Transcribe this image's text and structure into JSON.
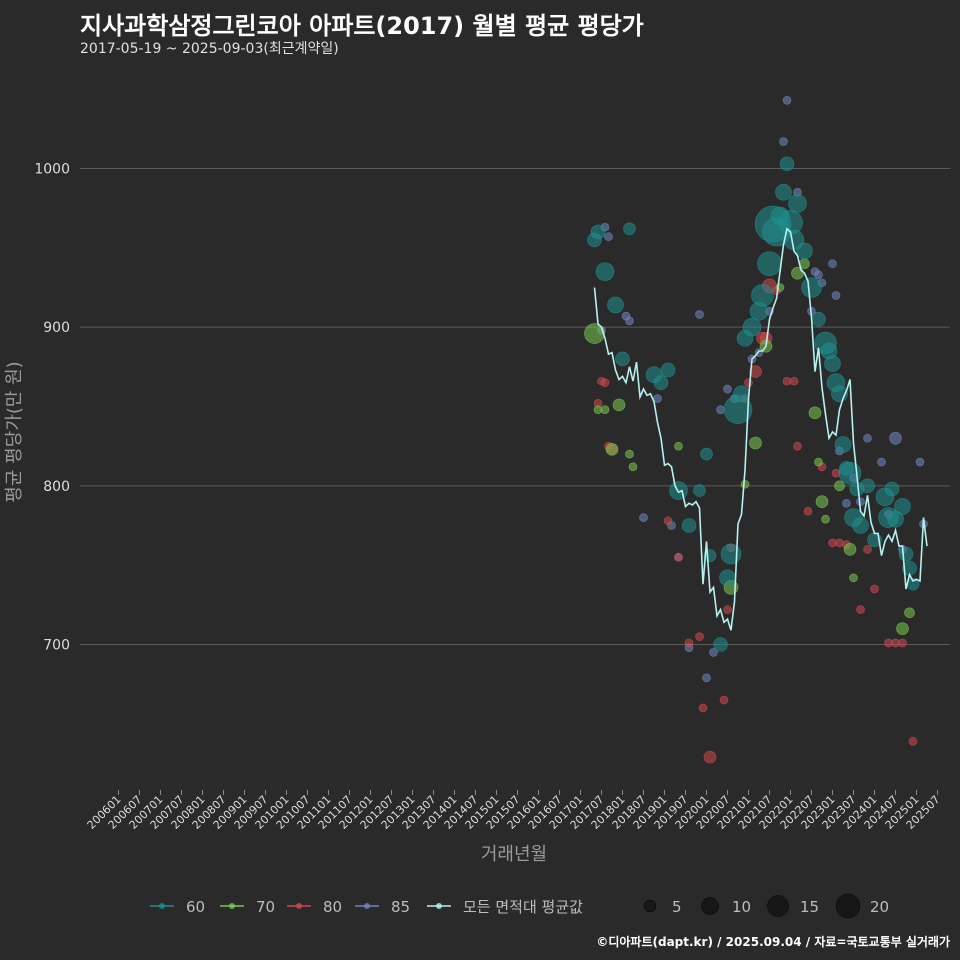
{
  "title": "지사과학삼정그린코아 아파트(2017) 월별 평균 평당가",
  "subtitle": "2017-05-19 ~ 2025-09-03(최근계약일)",
  "footer": "©디아파트(dapt.kr) / 2025.09.04 / 자료=국토교통부 실거래가",
  "colors": {
    "background": "#2a2a2a",
    "grid": "#5c5c5c",
    "area60": "#1f8f8f",
    "area70": "#7ac74f",
    "area80": "#d0484f",
    "area85": "#6f86c0",
    "average_line": "#b8f0f0"
  },
  "chart_data": {
    "type": "scatter",
    "xlabel": "거래년월",
    "ylabel": "평균 평당가(만 원)",
    "ylim": [
      605,
      1050
    ],
    "yticks": [
      700,
      800,
      900,
      1000
    ],
    "x_months": 237,
    "xticks": [
      "200601",
      "200607",
      "200701",
      "200707",
      "200801",
      "200807",
      "200901",
      "200907",
      "201001",
      "201007",
      "201101",
      "201107",
      "201201",
      "201207",
      "201301",
      "201307",
      "201401",
      "201407",
      "201501",
      "201507",
      "201601",
      "201607",
      "201701",
      "201707",
      "201801",
      "201807",
      "201901",
      "201907",
      "202001",
      "202007",
      "202101",
      "202107",
      "202201",
      "202207",
      "202301",
      "202307",
      "202401",
      "202407",
      "202501",
      "202507"
    ],
    "legend": {
      "series": [
        "60",
        "70",
        "80",
        "85",
        "모든 면적대 평균값"
      ],
      "sizes": [
        "5",
        "10",
        "15",
        "20"
      ]
    },
    "average_line": [
      [
        136,
        925
      ],
      [
        137,
        902
      ],
      [
        138,
        900
      ],
      [
        139,
        893
      ],
      [
        140,
        883
      ],
      [
        141,
        884
      ],
      [
        142,
        873
      ],
      [
        143,
        867
      ],
      [
        144,
        869
      ],
      [
        145,
        865
      ],
      [
        146,
        875
      ],
      [
        147,
        866
      ],
      [
        148,
        878
      ],
      [
        149,
        856
      ],
      [
        150,
        861
      ],
      [
        151,
        857
      ],
      [
        152,
        858
      ],
      [
        153,
        853
      ],
      [
        154,
        840
      ],
      [
        155,
        830
      ],
      [
        156,
        813
      ],
      [
        157,
        814
      ],
      [
        158,
        812
      ],
      [
        159,
        800
      ],
      [
        160,
        796
      ],
      [
        161,
        797
      ],
      [
        162,
        787
      ],
      [
        163,
        789
      ],
      [
        164,
        788
      ],
      [
        165,
        790
      ],
      [
        166,
        786
      ],
      [
        167,
        738
      ],
      [
        168,
        765
      ],
      [
        169,
        733
      ],
      [
        170,
        736
      ],
      [
        171,
        718
      ],
      [
        172,
        722
      ],
      [
        173,
        714
      ],
      [
        174,
        716
      ],
      [
        175,
        709
      ],
      [
        176,
        727
      ],
      [
        177,
        776
      ],
      [
        178,
        782
      ],
      [
        179,
        810
      ],
      [
        180,
        855
      ],
      [
        181,
        880
      ],
      [
        182,
        882
      ],
      [
        183,
        885
      ],
      [
        184,
        885
      ],
      [
        185,
        888
      ],
      [
        186,
        905
      ],
      [
        187,
        912
      ],
      [
        188,
        918
      ],
      [
        189,
        935
      ],
      [
        190,
        952
      ],
      [
        191,
        962
      ],
      [
        192,
        960
      ],
      [
        193,
        948
      ],
      [
        194,
        945
      ],
      [
        195,
        936
      ],
      [
        196,
        934
      ],
      [
        197,
        929
      ],
      [
        198,
        906
      ],
      [
        199,
        872
      ],
      [
        200,
        887
      ],
      [
        201,
        862
      ],
      [
        202,
        845
      ],
      [
        203,
        830
      ],
      [
        204,
        834
      ],
      [
        205,
        832
      ],
      [
        206,
        848
      ],
      [
        207,
        855
      ],
      [
        208,
        860
      ],
      [
        209,
        867
      ],
      [
        210,
        827
      ],
      [
        211,
        806
      ],
      [
        212,
        784
      ],
      [
        213,
        781
      ],
      [
        214,
        794
      ],
      [
        215,
        777
      ],
      [
        216,
        770
      ],
      [
        217,
        770
      ],
      [
        218,
        756
      ],
      [
        219,
        765
      ],
      [
        220,
        769
      ],
      [
        221,
        765
      ],
      [
        222,
        772
      ],
      [
        223,
        762
      ],
      [
        224,
        762
      ],
      [
        225,
        735
      ],
      [
        226,
        744
      ],
      [
        227,
        740
      ],
      [
        228,
        741
      ],
      [
        229,
        740
      ],
      [
        230,
        780
      ],
      [
        231,
        762
      ]
    ],
    "points": {
      "60": [
        [
          136,
          955,
          7
        ],
        [
          137,
          960,
          7
        ],
        [
          139,
          935,
          9
        ],
        [
          142,
          914,
          8
        ],
        [
          144,
          880,
          7
        ],
        [
          146,
          962,
          6
        ],
        [
          153,
          870,
          8
        ],
        [
          155,
          865,
          7
        ],
        [
          157,
          873,
          7
        ],
        [
          160,
          797,
          9
        ],
        [
          163,
          775,
          7
        ],
        [
          166,
          797,
          6
        ],
        [
          168,
          820,
          6
        ],
        [
          169,
          756,
          6
        ],
        [
          172,
          700,
          7
        ],
        [
          174,
          742,
          8
        ],
        [
          175,
          757,
          10
        ],
        [
          177,
          848,
          14
        ],
        [
          178,
          858,
          8
        ],
        [
          179,
          893,
          8
        ],
        [
          181,
          900,
          9
        ],
        [
          183,
          910,
          9
        ],
        [
          184,
          920,
          11
        ],
        [
          186,
          940,
          12
        ],
        [
          187,
          965,
          18
        ],
        [
          188,
          960,
          14
        ],
        [
          189,
          970,
          9
        ],
        [
          190,
          985,
          8
        ],
        [
          191,
          1003,
          7
        ],
        [
          192,
          966,
          12
        ],
        [
          193,
          955,
          10
        ],
        [
          194,
          978,
          9
        ],
        [
          196,
          948,
          8
        ],
        [
          198,
          925,
          10
        ],
        [
          200,
          905,
          7
        ],
        [
          202,
          890,
          11
        ],
        [
          203,
          885,
          8
        ],
        [
          204,
          877,
          8
        ],
        [
          205,
          865,
          9
        ],
        [
          206,
          858,
          8
        ],
        [
          207,
          826,
          8
        ],
        [
          208,
          811,
          7
        ],
        [
          209,
          808,
          11
        ],
        [
          210,
          780,
          9
        ],
        [
          211,
          798,
          7
        ],
        [
          212,
          775,
          8
        ],
        [
          214,
          800,
          7
        ],
        [
          216,
          766,
          7
        ],
        [
          219,
          793,
          9
        ],
        [
          220,
          780,
          10
        ],
        [
          221,
          798,
          7
        ],
        [
          222,
          779,
          8
        ],
        [
          224,
          787,
          8
        ],
        [
          225,
          757,
          7
        ],
        [
          226,
          748,
          7
        ],
        [
          227,
          738,
          6
        ]
      ],
      "70": [
        [
          136,
          896,
          10
        ],
        [
          137,
          848,
          4
        ],
        [
          139,
          848,
          4
        ],
        [
          141,
          823,
          6
        ],
        [
          143,
          851,
          6
        ],
        [
          146,
          820,
          4
        ],
        [
          147,
          812,
          4
        ],
        [
          160,
          825,
          4
        ],
        [
          175,
          736,
          7
        ],
        [
          179,
          801,
          4
        ],
        [
          182,
          827,
          6
        ],
        [
          185,
          888,
          6
        ],
        [
          189,
          925,
          4
        ],
        [
          194,
          934,
          6
        ],
        [
          196,
          940,
          5
        ],
        [
          199,
          846,
          6
        ],
        [
          200,
          815,
          4
        ],
        [
          201,
          790,
          6
        ],
        [
          202,
          779,
          4
        ],
        [
          206,
          800,
          5
        ],
        [
          209,
          760,
          6
        ],
        [
          210,
          742,
          4
        ],
        [
          224,
          710,
          6
        ],
        [
          226,
          720,
          5
        ]
      ],
      "80": [
        [
          137,
          852,
          4
        ],
        [
          138,
          866,
          4
        ],
        [
          139,
          865,
          4
        ],
        [
          140,
          825,
          4
        ],
        [
          141,
          823,
          5
        ],
        [
          157,
          778,
          4
        ],
        [
          160,
          755,
          4
        ],
        [
          163,
          701,
          4
        ],
        [
          166,
          705,
          4
        ],
        [
          167,
          660,
          4
        ],
        [
          169,
          629,
          6
        ],
        [
          173,
          665,
          4
        ],
        [
          174,
          722,
          4
        ],
        [
          175,
          761,
          4
        ],
        [
          179,
          855,
          4
        ],
        [
          180,
          865,
          4
        ],
        [
          182,
          872,
          6
        ],
        [
          184,
          893,
          6
        ],
        [
          185,
          893,
          6
        ],
        [
          186,
          926,
          7
        ],
        [
          188,
          923,
          4
        ],
        [
          191,
          866,
          4
        ],
        [
          193,
          866,
          4
        ],
        [
          194,
          825,
          4
        ],
        [
          197,
          784,
          4
        ],
        [
          201,
          812,
          4
        ],
        [
          204,
          764,
          4
        ],
        [
          205,
          808,
          4
        ],
        [
          206,
          764,
          4
        ],
        [
          208,
          763,
          4
        ],
        [
          212,
          722,
          4
        ],
        [
          214,
          760,
          4
        ],
        [
          216,
          735,
          4
        ],
        [
          220,
          701,
          4
        ],
        [
          222,
          701,
          4
        ],
        [
          224,
          701,
          4
        ],
        [
          227,
          639,
          4
        ]
      ],
      "85": [
        [
          138,
          898,
          4
        ],
        [
          139,
          963,
          4
        ],
        [
          140,
          957,
          4
        ],
        [
          145,
          907,
          4
        ],
        [
          146,
          904,
          4
        ],
        [
          150,
          780,
          4
        ],
        [
          154,
          855,
          4
        ],
        [
          158,
          775,
          4
        ],
        [
          160,
          755,
          4
        ],
        [
          163,
          698,
          4
        ],
        [
          166,
          908,
          4
        ],
        [
          168,
          679,
          4
        ],
        [
          170,
          695,
          4
        ],
        [
          172,
          848,
          4
        ],
        [
          174,
          861,
          4
        ],
        [
          176,
          855,
          4
        ],
        [
          181,
          880,
          4
        ],
        [
          183,
          884,
          4
        ],
        [
          186,
          910,
          4
        ],
        [
          190,
          1017,
          4
        ],
        [
          191,
          1043,
          4
        ],
        [
          194,
          985,
          4
        ],
        [
          198,
          910,
          4
        ],
        [
          199,
          935,
          4
        ],
        [
          200,
          933,
          4
        ],
        [
          201,
          928,
          4
        ],
        [
          204,
          940,
          4
        ],
        [
          205,
          920,
          4
        ],
        [
          206,
          822,
          4
        ],
        [
          208,
          789,
          4
        ],
        [
          210,
          805,
          4
        ],
        [
          212,
          790,
          4
        ],
        [
          214,
          830,
          4
        ],
        [
          218,
          815,
          4
        ],
        [
          220,
          782,
          4
        ],
        [
          222,
          830,
          6
        ],
        [
          224,
          760,
          4
        ],
        [
          229,
          815,
          4
        ],
        [
          230,
          776,
          4
        ]
      ]
    }
  }
}
